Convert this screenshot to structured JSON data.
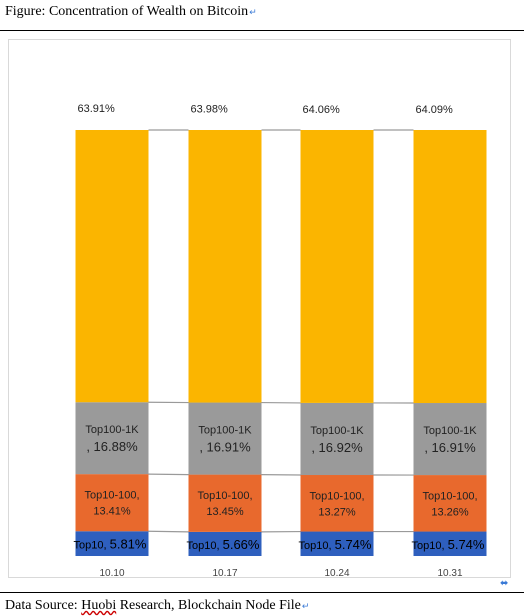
{
  "figure": {
    "title": "Figure:  Concentration of Wealth on Bitcoin",
    "source_prefix": "Data Source: ",
    "source_misspelled": "Huobi",
    "source_rest": " Research, Blockchain Node File"
  },
  "chart_data": {
    "type": "bar",
    "stacked": true,
    "normalized": true,
    "categories": [
      "10.10",
      "10.17",
      "10.24",
      "10.31"
    ],
    "series": [
      {
        "name": "Top10",
        "color": "#2e5fbe",
        "values": [
          5.81,
          5.66,
          5.74,
          5.74
        ],
        "labels": [
          "Top10, 5.81%",
          "Top10, 5.66%",
          "Top10, 5.74%",
          "Top10, 5.74%"
        ]
      },
      {
        "name": "Top10-100",
        "color": "#e8692d",
        "values": [
          13.41,
          13.45,
          13.27,
          13.26
        ],
        "labels": [
          "Top10-100,|13.41%",
          "Top10-100,|13.45%",
          "Top10-100,|13.27%",
          "Top10-100,|13.26%"
        ]
      },
      {
        "name": "Top100-1K",
        "color": "#9a9a9a",
        "values": [
          16.88,
          16.91,
          16.92,
          16.91
        ],
        "labels": [
          "Top100-1K|, 16.88%",
          "Top100-1K|, 16.91%",
          "Top100-1K|, 16.92%",
          "Top100-1K|, 16.91%"
        ]
      },
      {
        "name": "",
        "color": "#fbb500",
        "values": [
          63.91,
          63.98,
          64.06,
          64.09
        ],
        "labels": [
          "63.91%",
          "63.98%",
          "64.06%",
          "64.09%"
        ]
      }
    ],
    "ylim": [
      0,
      100
    ],
    "grid": false,
    "legend": "none",
    "series_lines": true,
    "xlabel": "",
    "ylabel": ""
  }
}
